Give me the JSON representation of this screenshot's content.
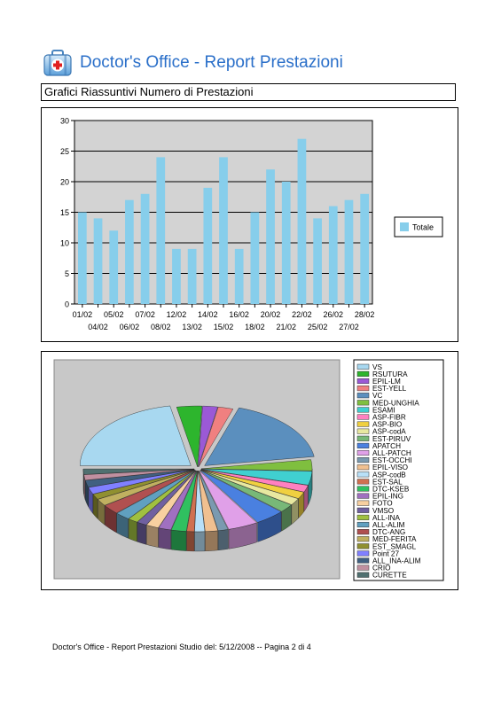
{
  "header": {
    "title": "Doctor's Office - Report Prestazioni",
    "icon": "medical-kit-icon"
  },
  "section_title": "Grafici Riassuntivi Numero di Prestazioni",
  "footer": {
    "text": "Doctor's Office - Report Prestazioni Studio del: 5/12/2008 -- Pagina 2 di 4"
  },
  "colors": {
    "title": "#2a6fc9",
    "bar": "#87ceeb",
    "plot_background": "#d3d3d3",
    "pie_background": "#c8c8c8"
  },
  "chart_data": [
    {
      "type": "bar",
      "categories": [
        "01/02",
        "04/02",
        "05/02",
        "06/02",
        "07/02",
        "08/02",
        "12/02",
        "13/02",
        "14/02",
        "15/02",
        "16/02",
        "18/02",
        "20/02",
        "21/02",
        "22/02",
        "25/02",
        "26/02",
        "27/02",
        "28/02"
      ],
      "series": [
        {
          "name": "Totale",
          "values": [
            15,
            14,
            12,
            17,
            18,
            24,
            9,
            9,
            19,
            24,
            9,
            15,
            22,
            20,
            27,
            14,
            16,
            17,
            18
          ]
        }
      ],
      "ylim": [
        0,
        30
      ],
      "yticks": [
        0,
        5,
        10,
        15,
        20,
        25,
        30
      ],
      "grid": true,
      "legend_position": "right",
      "legend": [
        "Totale"
      ]
    },
    {
      "type": "pie",
      "labels": [
        "VS",
        "RSUTURA",
        "EPIL-LM",
        "EST-YELL",
        "VC",
        "MED-UNGHIA",
        "ESAMI",
        "ASP-FIBR",
        "ASP-BIO",
        "ASP-codA",
        "EST-PIRUV",
        "APATCH",
        "ALL-PATCH",
        "EST-OCCHI",
        "EPIL-VISO",
        "ASP-codB",
        "EST-SAL",
        "DTC-KSEB",
        "EPIL-ING",
        "FOTO",
        "VMSO",
        "ALL-INA",
        "ALL-ALIM",
        "DTC-ANG",
        "MED-FERITA",
        "EST_SMAGL",
        "Point 27",
        "ALL_INA-ALIM",
        "CRIO",
        "CURETTE"
      ],
      "values": [
        60,
        10,
        6,
        6,
        48,
        8,
        10,
        5,
        5,
        5,
        6,
        12,
        12,
        4,
        5,
        4,
        3,
        6,
        5,
        5,
        4,
        4,
        6,
        7,
        5,
        4,
        5,
        5,
        4,
        4
      ],
      "colors": [
        "#a8d8f0",
        "#2db52d",
        "#9b59d6",
        "#f08080",
        "#5b8fbe",
        "#7fbf3f",
        "#40d0d0",
        "#ff80c0",
        "#f0d040",
        "#e8e8a0",
        "#78b878",
        "#4a80e0",
        "#e0a0e8",
        "#7a9ab0",
        "#f0c090",
        "#b8e0f8",
        "#d07050",
        "#30c060",
        "#a070c0",
        "#f8d0a0",
        "#7060a0",
        "#a0c040",
        "#60a0c0",
        "#b05050",
        "#c0b060",
        "#909030",
        "#8080ff",
        "#406080",
        "#c090a0",
        "#507070"
      ],
      "legend_position": "right",
      "style": "3d-exploded"
    }
  ]
}
